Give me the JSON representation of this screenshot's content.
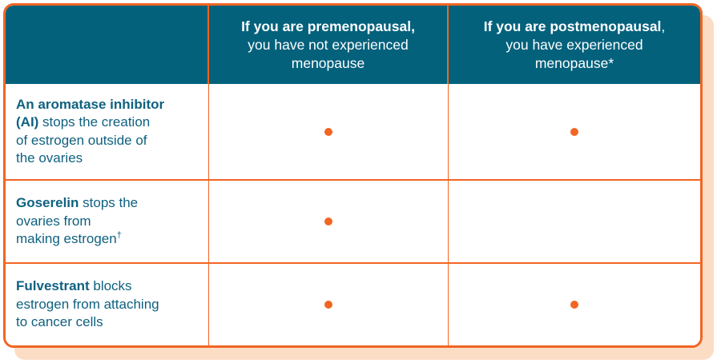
{
  "colors": {
    "accent_orange": "#F26522",
    "header_teal": "#03617C",
    "body_text_teal": "#0F6180",
    "shadow_peach": "#FBDCC5",
    "cell_background": "#FFFFFF"
  },
  "icons": {
    "mark": "orange-ring-bullet"
  },
  "chart_data": {
    "type": "table",
    "title": "",
    "columns": [
      "",
      "If you are premenopausal, you have not experienced menopause",
      "If you are postmenopausal, you have experienced menopause*"
    ],
    "rows": [
      {
        "treatment": "An aromatase inhibitor (AI) stops the creation of estrogen outside of the ovaries",
        "premenopausal": true,
        "postmenopausal": true
      },
      {
        "treatment": "Goserelin stops the ovaries from making estrogen†",
        "premenopausal": true,
        "postmenopausal": false
      },
      {
        "treatment": "Fulvestrant blocks estrogen from attaching to cancer cells",
        "premenopausal": true,
        "postmenopausal": true
      }
    ],
    "legend_position": "none",
    "grid": "on"
  },
  "table": {
    "header": {
      "premenopausal": {
        "lines": [
          [
            {
              "t": "If you are premenopausal,",
              "b": true
            }
          ],
          [
            {
              "t": "you have not experienced"
            }
          ],
          [
            {
              "t": "menopause"
            }
          ]
        ]
      },
      "postmenopausal": {
        "lines": [
          [
            {
              "t": "If you are postmenopausal",
              "b": true
            },
            {
              "t": ","
            }
          ],
          [
            {
              "t": "you have experienced"
            }
          ],
          [
            {
              "t": "menopause*"
            }
          ]
        ]
      }
    },
    "rows": [
      {
        "name": "aromatase-inhibitor",
        "lines": [
          [
            {
              "t": "An aromatase inhibitor",
              "b": true
            }
          ],
          [
            {
              "t": "(AI)",
              "b": true
            },
            {
              "t": " stops the creation"
            }
          ],
          [
            {
              "t": "of estrogen outside of"
            }
          ],
          [
            {
              "t": "the ovaries"
            }
          ]
        ],
        "marks": {
          "premenopausal": true,
          "postmenopausal": true
        }
      },
      {
        "name": "goserelin",
        "lines": [
          [
            {
              "t": "Goserelin",
              "b": true
            },
            {
              "t": " stops the"
            }
          ],
          [
            {
              "t": "ovaries from"
            }
          ],
          [
            {
              "t": "making estrogen"
            },
            {
              "t": "†",
              "sup": true
            }
          ]
        ],
        "marks": {
          "premenopausal": true,
          "postmenopausal": false
        }
      },
      {
        "name": "fulvestrant",
        "lines": [
          [
            {
              "t": "Fulvestrant",
              "b": true
            },
            {
              "t": " blocks"
            }
          ],
          [
            {
              "t": "estrogen from attaching"
            }
          ],
          [
            {
              "t": "to cancer cells"
            }
          ]
        ],
        "marks": {
          "premenopausal": true,
          "postmenopausal": true
        }
      }
    ]
  }
}
